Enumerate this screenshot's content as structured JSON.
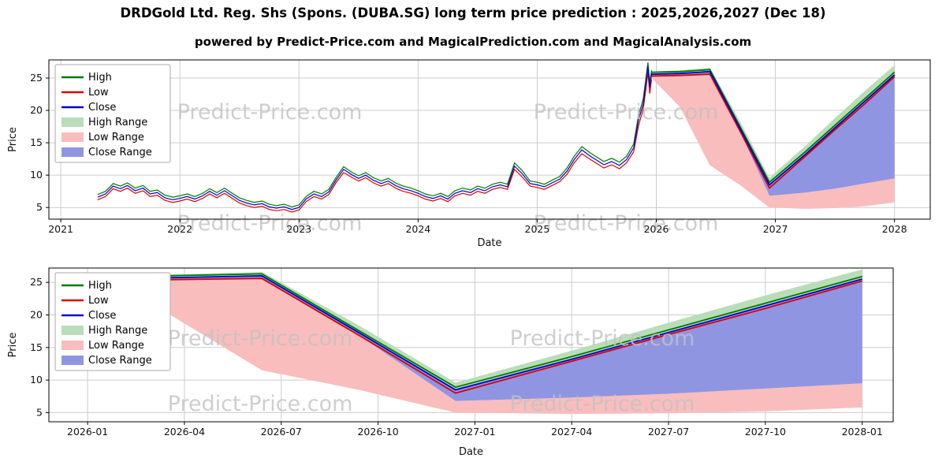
{
  "header": {
    "title": "DRDGold Ltd. Reg. Shs (Spons. (DUBA.SG) long term price prediction : 2025,2026,2027 (Dec 18)",
    "subtitle": "powered by Predict-Price.com and MagicalPrediction.com and MagicalAnalysis.com"
  },
  "watermark": "Predict-Price.com",
  "colors": {
    "high": "#007700",
    "low": "#dd0000",
    "close": "#0000cc",
    "high_range": "#b9ddb9",
    "low_range": "#f9bdbd",
    "close_range": "#9095e2",
    "grid": "#cccccc",
    "watermark": "#c3c3c3"
  },
  "chart_data": [
    {
      "type": "line",
      "title": "",
      "xlabel": "Date",
      "ylabel": "Price",
      "legend": [
        "High",
        "Low",
        "Close",
        "High Range",
        "Low Range",
        "Close Range"
      ],
      "legend_position": "upper left",
      "grid": true,
      "xticklabels": [
        "2021",
        "2022",
        "2023",
        "2024",
        "2025",
        "2026",
        "2027",
        "2028"
      ],
      "yticks": [
        5,
        10,
        15,
        20,
        25
      ],
      "xlim": [
        2020.9,
        2028.3
      ],
      "ylim": [
        3.2,
        27.8
      ],
      "history": {
        "columns": [
          "x",
          "low",
          "close",
          "high"
        ],
        "points": [
          [
            2021.31,
            6.2,
            6.6,
            7.0
          ],
          [
            2021.375,
            6.7,
            7.1,
            7.5
          ],
          [
            2021.44,
            7.9,
            8.3,
            8.7
          ],
          [
            2021.5,
            7.5,
            7.9,
            8.3
          ],
          [
            2021.56,
            8.0,
            8.4,
            8.8
          ],
          [
            2021.625,
            7.2,
            7.6,
            8.0
          ],
          [
            2021.69,
            7.6,
            8.0,
            8.4
          ],
          [
            2021.75,
            6.7,
            7.1,
            7.5
          ],
          [
            2021.81,
            6.9,
            7.3,
            7.7
          ],
          [
            2021.875,
            6.1,
            6.5,
            6.9
          ],
          [
            2021.94,
            5.8,
            6.2,
            6.6
          ],
          [
            2022.0,
            6.0,
            6.4,
            6.8
          ],
          [
            2022.06,
            6.3,
            6.7,
            7.1
          ],
          [
            2022.125,
            5.9,
            6.3,
            6.7
          ],
          [
            2022.19,
            6.4,
            6.8,
            7.2
          ],
          [
            2022.25,
            7.1,
            7.5,
            7.9
          ],
          [
            2022.31,
            6.5,
            6.9,
            7.3
          ],
          [
            2022.375,
            7.2,
            7.6,
            8.0
          ],
          [
            2022.44,
            6.4,
            6.8,
            7.2
          ],
          [
            2022.5,
            5.7,
            6.1,
            6.5
          ],
          [
            2022.56,
            5.3,
            5.7,
            6.1
          ],
          [
            2022.625,
            5.0,
            5.4,
            5.8
          ],
          [
            2022.69,
            5.2,
            5.6,
            6.0
          ],
          [
            2022.75,
            4.7,
            5.1,
            5.5
          ],
          [
            2022.81,
            4.5,
            4.9,
            5.3
          ],
          [
            2022.875,
            4.7,
            5.1,
            5.5
          ],
          [
            2022.94,
            4.3,
            4.7,
            5.1
          ],
          [
            2023.0,
            4.6,
            5.0,
            5.4
          ],
          [
            2023.06,
            5.9,
            6.3,
            6.7
          ],
          [
            2023.125,
            6.7,
            7.1,
            7.5
          ],
          [
            2023.19,
            6.3,
            6.7,
            7.1
          ],
          [
            2023.25,
            7.0,
            7.4,
            7.8
          ],
          [
            2023.31,
            8.8,
            9.2,
            9.6
          ],
          [
            2023.375,
            10.4,
            10.9,
            11.3
          ],
          [
            2023.44,
            9.7,
            10.1,
            10.5
          ],
          [
            2023.5,
            9.1,
            9.5,
            9.9
          ],
          [
            2023.56,
            9.6,
            10.0,
            10.4
          ],
          [
            2023.625,
            8.8,
            9.2,
            9.6
          ],
          [
            2023.69,
            8.3,
            8.7,
            9.1
          ],
          [
            2023.75,
            8.7,
            9.1,
            9.5
          ],
          [
            2023.81,
            8.0,
            8.4,
            8.8
          ],
          [
            2023.875,
            7.5,
            7.9,
            8.3
          ],
          [
            2023.94,
            7.2,
            7.6,
            8.0
          ],
          [
            2024.0,
            6.8,
            7.2,
            7.6
          ],
          [
            2024.06,
            6.3,
            6.7,
            7.1
          ],
          [
            2024.125,
            6.0,
            6.4,
            6.8
          ],
          [
            2024.19,
            6.4,
            6.8,
            7.2
          ],
          [
            2024.25,
            5.9,
            6.3,
            6.7
          ],
          [
            2024.31,
            6.8,
            7.2,
            7.6
          ],
          [
            2024.375,
            7.2,
            7.6,
            8.0
          ],
          [
            2024.44,
            6.9,
            7.3,
            7.7
          ],
          [
            2024.5,
            7.5,
            7.9,
            8.3
          ],
          [
            2024.56,
            7.2,
            7.6,
            8.0
          ],
          [
            2024.625,
            7.8,
            8.2,
            8.6
          ],
          [
            2024.69,
            8.1,
            8.5,
            8.9
          ],
          [
            2024.75,
            7.8,
            8.2,
            8.6
          ],
          [
            2024.81,
            10.9,
            11.4,
            11.9
          ],
          [
            2024.875,
            9.7,
            10.2,
            10.7
          ],
          [
            2024.94,
            8.3,
            8.7,
            9.1
          ],
          [
            2025.0,
            8.1,
            8.5,
            8.9
          ],
          [
            2025.06,
            7.8,
            8.2,
            8.6
          ],
          [
            2025.125,
            8.4,
            8.8,
            9.2
          ],
          [
            2025.19,
            9.0,
            9.4,
            9.8
          ],
          [
            2025.25,
            10.1,
            10.6,
            11.1
          ],
          [
            2025.31,
            11.9,
            12.4,
            12.9
          ],
          [
            2025.375,
            13.3,
            13.9,
            14.4
          ],
          [
            2025.44,
            12.5,
            13.0,
            13.5
          ],
          [
            2025.5,
            11.8,
            12.3,
            12.8
          ],
          [
            2025.56,
            11.1,
            11.6,
            12.1
          ],
          [
            2025.625,
            11.6,
            12.1,
            12.6
          ],
          [
            2025.69,
            11.0,
            11.5,
            12.0
          ],
          [
            2025.75,
            11.9,
            12.4,
            12.9
          ],
          [
            2025.81,
            13.6,
            14.2,
            14.8
          ],
          [
            2025.85,
            17.6,
            18.5,
            19.2
          ],
          [
            2025.89,
            20.2,
            21.0,
            21.8
          ],
          [
            2025.915,
            23.6,
            24.5,
            25.3
          ],
          [
            2025.93,
            25.9,
            26.8,
            27.4
          ],
          [
            2025.945,
            22.6,
            23.5,
            24.3
          ],
          [
            2025.96,
            24.8,
            25.7,
            26.2
          ]
        ]
      },
      "forecast": {
        "x": [
          2025.96,
          2026.2,
          2026.45,
          2026.7,
          2026.95,
          2027.25,
          2027.5,
          2027.75,
          2028.0
        ],
        "high": [
          25.9,
          26.0,
          26.3,
          17.6,
          8.9,
          13.6,
          17.7,
          21.8,
          25.9
        ],
        "low": [
          25.3,
          25.4,
          25.6,
          16.9,
          8.0,
          12.9,
          17.0,
          21.0,
          25.2
        ],
        "close": [
          25.6,
          25.7,
          26.0,
          17.3,
          8.5,
          13.2,
          17.3,
          21.4,
          25.5
        ],
        "high_range_top": [
          26.0,
          26.2,
          26.6,
          18.4,
          9.6,
          14.5,
          18.8,
          23.0,
          27.0
        ],
        "low_range_top": [
          25.3,
          25.4,
          25.6,
          16.9,
          6.8,
          7.3,
          7.9,
          8.7,
          9.5
        ],
        "low_range_bottom": [
          25.0,
          20.5,
          11.5,
          8.5,
          5.0,
          4.8,
          4.9,
          5.2,
          5.8
        ]
      }
    },
    {
      "type": "line",
      "title": "",
      "xlabel": "Date",
      "ylabel": "Price",
      "legend": [
        "High",
        "Low",
        "Close",
        "High Range",
        "Low Range",
        "Close Range"
      ],
      "legend_position": "upper left",
      "grid": true,
      "xticklabels": [
        "2026-01",
        "2026-04",
        "2026-07",
        "2026-10",
        "2027-01",
        "2027-04",
        "2027-07",
        "2027-10",
        "2028-01"
      ],
      "yticks": [
        5,
        10,
        15,
        20,
        25
      ],
      "xlim": [
        2025.9,
        2028.08
      ],
      "ylim": [
        3.6,
        27.2
      ],
      "forecast": {
        "x": [
          2025.96,
          2026.2,
          2026.45,
          2026.7,
          2026.95,
          2027.25,
          2027.5,
          2027.75,
          2028.0
        ],
        "high": [
          25.9,
          26.0,
          26.3,
          17.6,
          8.9,
          13.6,
          17.7,
          21.8,
          25.9
        ],
        "low": [
          25.3,
          25.4,
          25.6,
          16.9,
          8.0,
          12.9,
          17.0,
          21.0,
          25.2
        ],
        "close": [
          25.6,
          25.7,
          26.0,
          17.3,
          8.5,
          13.2,
          17.3,
          21.4,
          25.5
        ],
        "high_range_top": [
          26.0,
          26.2,
          26.6,
          18.4,
          9.6,
          14.5,
          18.8,
          23.0,
          27.0
        ],
        "low_range_top": [
          25.3,
          25.4,
          25.6,
          16.9,
          6.8,
          7.3,
          7.9,
          8.7,
          9.5
        ],
        "low_range_bottom": [
          25.0,
          20.5,
          11.5,
          8.5,
          5.0,
          4.8,
          4.9,
          5.2,
          5.8
        ]
      }
    }
  ]
}
